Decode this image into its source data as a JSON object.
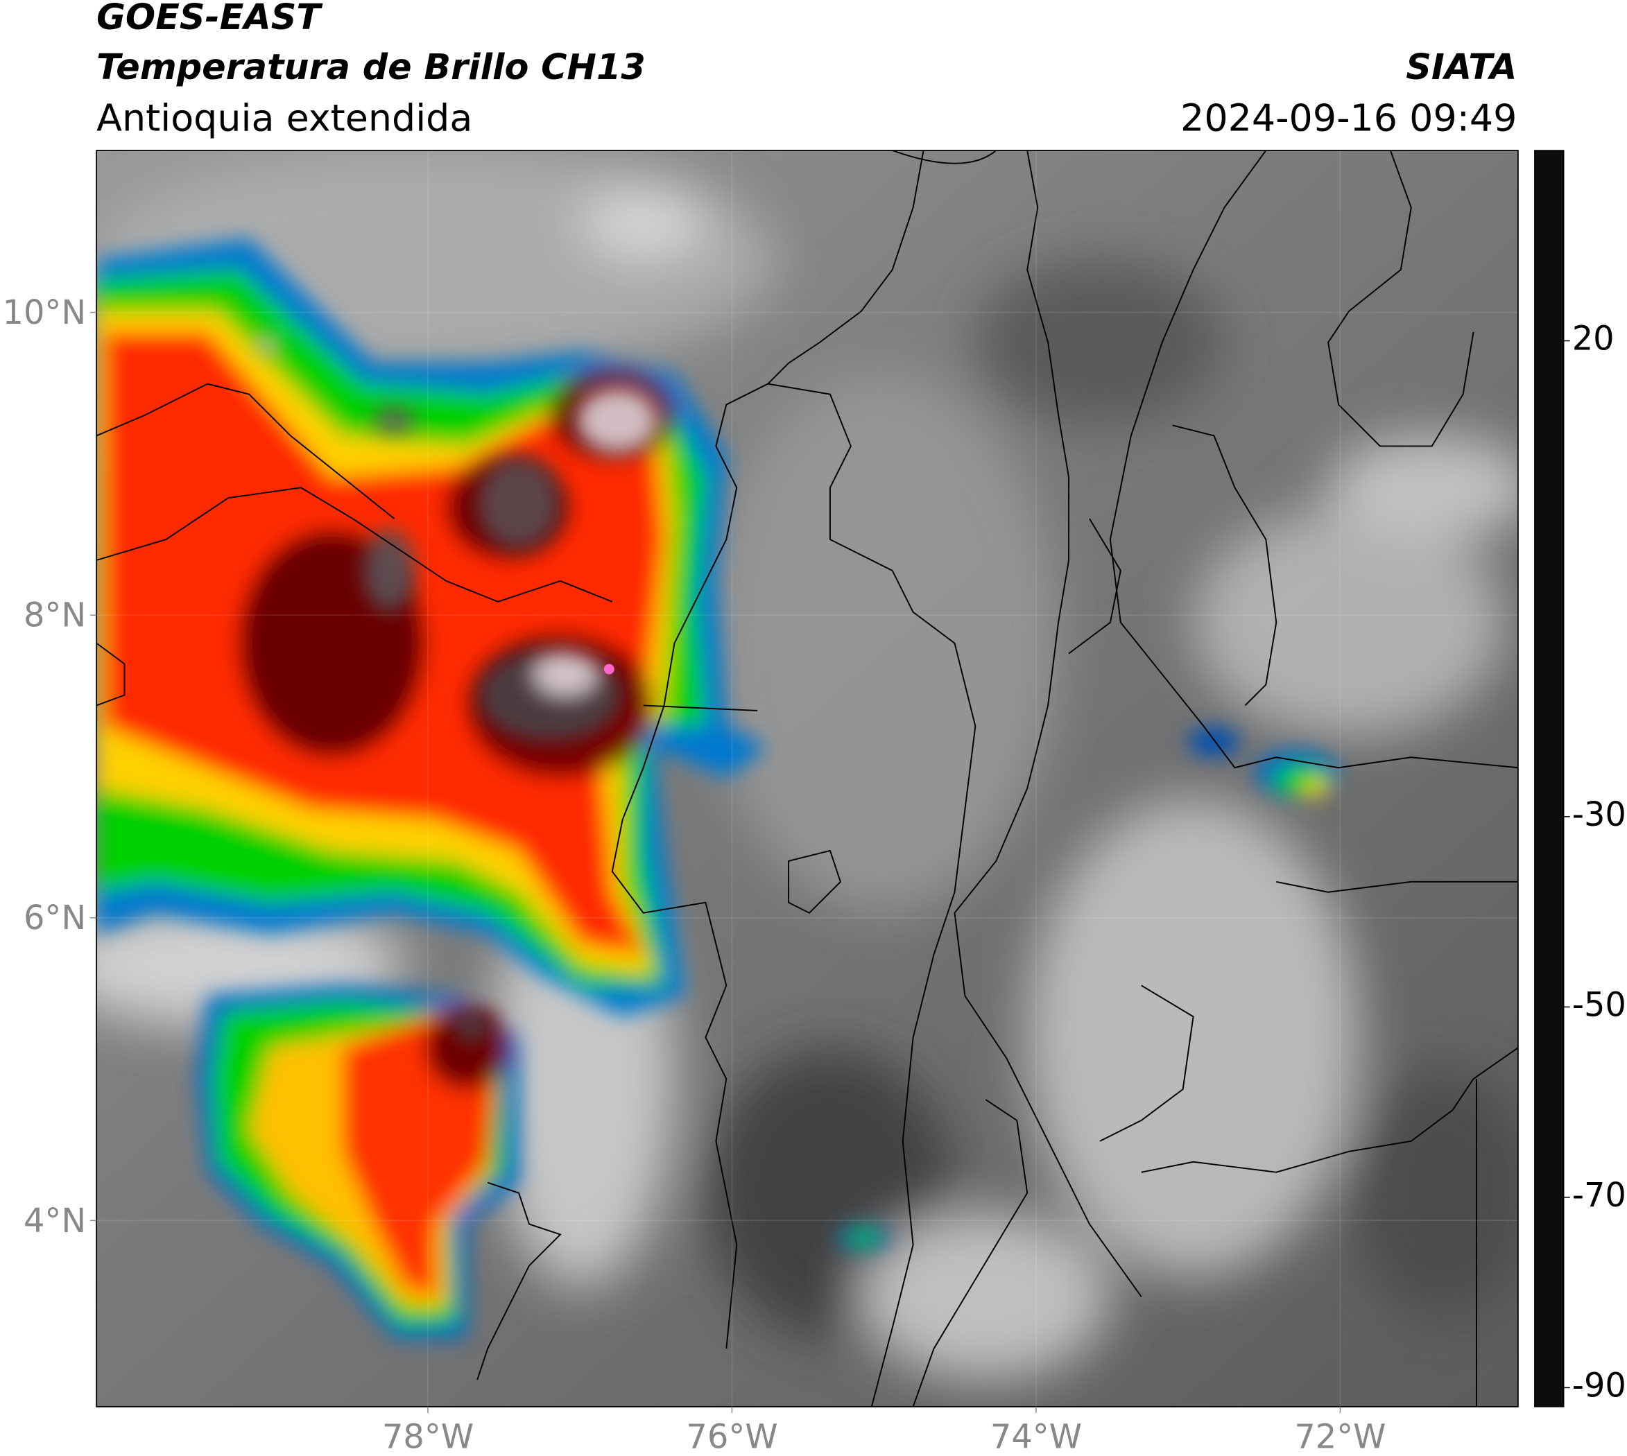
{
  "chart_data": {
    "type": "map",
    "title": "GOES-EAST",
    "subtitle": "Temperatura de Brillo CH13",
    "region": "Antioquia extendida",
    "source": "SIATA",
    "datetime": "2024-09-16 09:49",
    "xlim": [
      -80.18,
      -70.83
    ],
    "ylim": [
      2.77,
      11.07
    ],
    "xticks": [
      {
        "value": -78,
        "label": "78°W"
      },
      {
        "value": -76,
        "label": "76°W"
      },
      {
        "value": -74,
        "label": "74°W"
      },
      {
        "value": -72,
        "label": "72°W"
      }
    ],
    "yticks": [
      {
        "value": 4,
        "label": "4°N"
      },
      {
        "value": 6,
        "label": "6°N"
      },
      {
        "value": 8,
        "label": "8°N"
      },
      {
        "value": 10,
        "label": "10°N"
      }
    ],
    "grid": true,
    "colorbar": {
      "lim": [
        -92,
        40
      ],
      "ticks": [
        20,
        -30,
        -50,
        -70,
        -90
      ],
      "stops": [
        [
          40,
          "#0d0d0d"
        ],
        [
          20,
          "#555555"
        ],
        [
          0,
          "#b5b5b5"
        ],
        [
          -18,
          "#ffffff"
        ],
        [
          -19,
          "#00e5f5"
        ],
        [
          -25,
          "#0068c8"
        ],
        [
          -30,
          "#001c84"
        ],
        [
          -33,
          "#006a4a"
        ],
        [
          -40,
          "#00e000"
        ],
        [
          -48,
          "#ffff00"
        ],
        [
          -54,
          "#ff9a00"
        ],
        [
          -60,
          "#ff2a00"
        ],
        [
          -67,
          "#6a0000"
        ],
        [
          -70,
          "#050505"
        ],
        [
          -74,
          "#808080"
        ],
        [
          -76,
          "#e0e0e0"
        ],
        [
          -77,
          "#ff66cc"
        ],
        [
          -89,
          "#7a0080"
        ],
        [
          -90,
          "#ffffff"
        ]
      ]
    }
  }
}
